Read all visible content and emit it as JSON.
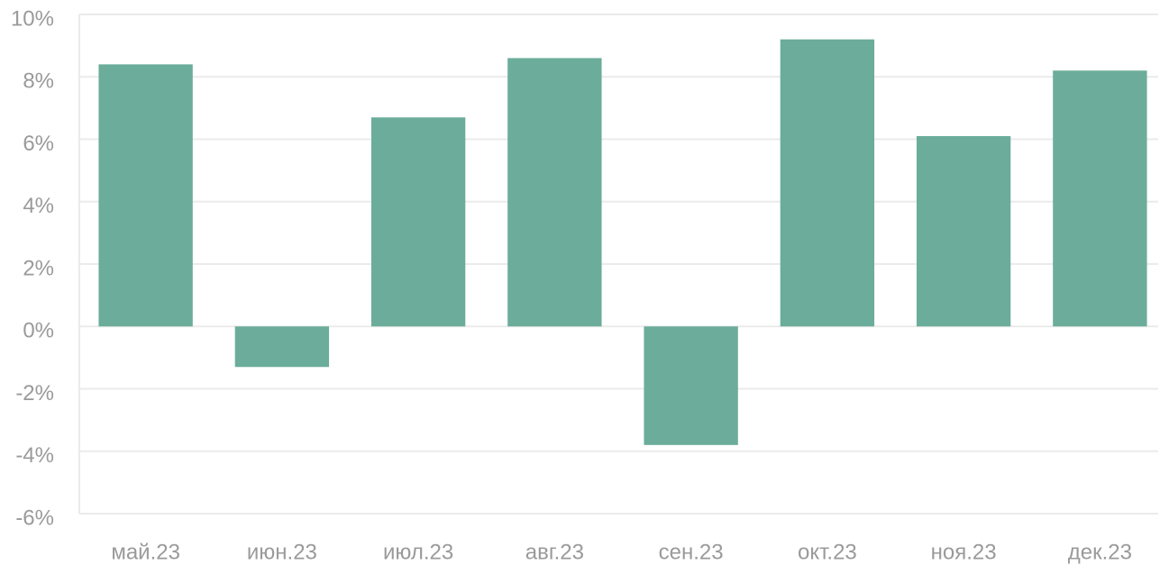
{
  "chart_data": {
    "type": "bar",
    "categories": [
      "май.23",
      "июн.23",
      "июл.23",
      "авг.23",
      "сен.23",
      "окт.23",
      "ноя.23",
      "дек.23"
    ],
    "values": [
      8.4,
      -1.3,
      6.7,
      8.6,
      -3.8,
      9.2,
      6.1,
      8.2
    ],
    "color": "#6bad9a",
    "ylim": [
      -6,
      10
    ],
    "yticks": [
      {
        "value": -6,
        "label": "-6%"
      },
      {
        "value": -4,
        "label": "-4%"
      },
      {
        "value": -2,
        "label": "-2%"
      },
      {
        "value": 0,
        "label": "0%"
      },
      {
        "value": 2,
        "label": "2%"
      },
      {
        "value": 4,
        "label": "4%"
      },
      {
        "value": 6,
        "label": "6%"
      },
      {
        "value": 8,
        "label": "8%"
      },
      {
        "value": 10,
        "label": "10%"
      }
    ],
    "grid": true
  }
}
